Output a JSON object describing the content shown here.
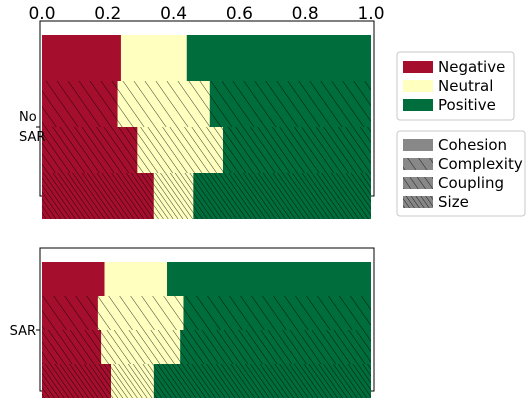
{
  "chart_data": {
    "type": "bar",
    "orientation": "horizontal",
    "stacked": true,
    "xlim": [
      0.0,
      1.0
    ],
    "x_ticks": [
      "0.0",
      "0.2",
      "0.4",
      "0.6",
      "0.8",
      "1.0"
    ],
    "x_tick_values": [
      0.0,
      0.2,
      0.4,
      0.6,
      0.8,
      1.0
    ],
    "sentiment_categories": [
      {
        "name": "Negative",
        "color": "#a50f2d"
      },
      {
        "name": "Neutral",
        "color": "#ffffc0"
      },
      {
        "name": "Positive",
        "color": "#006d3c"
      }
    ],
    "metrics": [
      {
        "name": "Cohesion",
        "pattern": "none"
      },
      {
        "name": "Complexity",
        "pattern": "wide-diagonal"
      },
      {
        "name": "Coupling",
        "pattern": "medium-diagonal"
      },
      {
        "name": "Size",
        "pattern": "dense-diagonal"
      }
    ],
    "groups": [
      {
        "label": "No SAR",
        "label_lines": [
          "No",
          "SAR"
        ],
        "bars": [
          {
            "metric": "Cohesion",
            "negative": 0.24,
            "neutral": 0.2,
            "positive": 0.56
          },
          {
            "metric": "Complexity",
            "negative": 0.23,
            "neutral": 0.28,
            "positive": 0.49
          },
          {
            "metric": "Coupling",
            "negative": 0.29,
            "neutral": 0.26,
            "positive": 0.45
          },
          {
            "metric": "Size",
            "negative": 0.34,
            "neutral": 0.12,
            "positive": 0.54
          }
        ]
      },
      {
        "label": "SAR",
        "label_lines": [
          "SAR"
        ],
        "bars": [
          {
            "metric": "Cohesion",
            "negative": 0.19,
            "neutral": 0.19,
            "positive": 0.62
          },
          {
            "metric": "Complexity",
            "negative": 0.17,
            "neutral": 0.26,
            "positive": 0.57
          },
          {
            "metric": "Coupling",
            "negative": 0.18,
            "neutral": 0.24,
            "positive": 0.58
          },
          {
            "metric": "Size",
            "negative": 0.21,
            "neutral": 0.13,
            "positive": 0.66
          }
        ]
      }
    ],
    "legend_placement": "right",
    "grid": false
  }
}
